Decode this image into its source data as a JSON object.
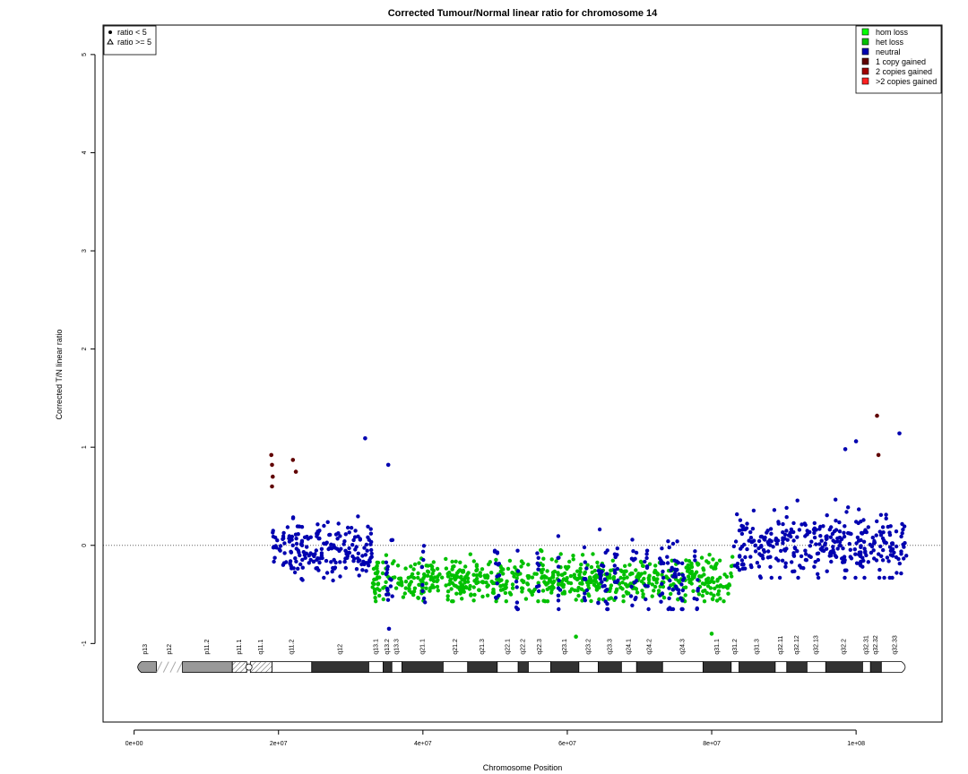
{
  "chart_data": {
    "type": "scatter",
    "title": "Corrected Tumour/Normal linear ratio for chromosome  14",
    "xlabel": "Chromosome Position",
    "ylabel": "Corrected T/N linear ratio",
    "xlim": [
      -4300000,
      111900000
    ],
    "ylim": [
      -1.8,
      5.3
    ],
    "xticks": [
      {
        "value": 0,
        "label": "0e+00"
      },
      {
        "value": 20000000,
        "label": "2e+07"
      },
      {
        "value": 40000000,
        "label": "4e+07"
      },
      {
        "value": 60000000,
        "label": "6e+07"
      },
      {
        "value": 80000000,
        "label": "8e+07"
      },
      {
        "value": 100000000,
        "label": "1e+08"
      }
    ],
    "yticks": [
      {
        "value": -1,
        "label": "-1"
      },
      {
        "value": 0,
        "label": "0"
      },
      {
        "value": 1,
        "label": "1"
      },
      {
        "value": 2,
        "label": "2"
      },
      {
        "value": 3,
        "label": "3"
      },
      {
        "value": 4,
        "label": "4"
      },
      {
        "value": 5,
        "label": "5"
      }
    ],
    "reference_line": {
      "y": 0,
      "style": "dotted"
    },
    "shape_legend": {
      "placement": "top-left",
      "entries": [
        {
          "symbol": "circle",
          "label": "ratio < 5"
        },
        {
          "symbol": "triangle",
          "label": "ratio >= 5"
        }
      ]
    },
    "legend": {
      "placement": "top-right",
      "entries": [
        {
          "label": "hom loss",
          "color": "#00ff00"
        },
        {
          "label": "het loss",
          "color": "#00c000"
        },
        {
          "label": "neutral",
          "color": "#0000b0"
        },
        {
          "label": "1 copy gained",
          "color": "#600000"
        },
        {
          "label": "2 copies gained",
          "color": "#a00000"
        },
        {
          "label": ">2 copies gained",
          "color": "#ff2020"
        }
      ]
    },
    "segments": [
      {
        "start": 19000000,
        "end": 33000000,
        "state": "neutral",
        "mean": -0.05,
        "spread": 0.28
      },
      {
        "start": 33000000,
        "end": 83000000,
        "state": "het loss",
        "mean": -0.35,
        "spread": 0.2
      },
      {
        "start": 83000000,
        "end": 107000000,
        "state": "neutral",
        "mean": 0.0,
        "spread": 0.3
      }
    ],
    "neutral_stripes_in_loss_region": [
      {
        "start": 34800000,
        "end": 35800000
      },
      {
        "start": 39800000,
        "end": 40300000
      },
      {
        "start": 49800000,
        "end": 50600000
      },
      {
        "start": 52800000,
        "end": 53300000
      },
      {
        "start": 55600000,
        "end": 56100000
      },
      {
        "start": 58600000,
        "end": 59200000
      },
      {
        "start": 62300000,
        "end": 62900000
      },
      {
        "start": 64200000,
        "end": 65700000
      },
      {
        "start": 66500000,
        "end": 67200000
      },
      {
        "start": 68800000,
        "end": 69600000
      },
      {
        "start": 70700000,
        "end": 71300000
      },
      {
        "start": 72700000,
        "end": 73400000
      },
      {
        "start": 73800000,
        "end": 76200000
      },
      {
        "start": 77600000,
        "end": 78200000
      }
    ],
    "notable_points": [
      {
        "x": 19000000,
        "y": 0.92,
        "state": "1 copy gained"
      },
      {
        "x": 19100000,
        "y": 0.82,
        "state": "1 copy gained"
      },
      {
        "x": 19200000,
        "y": 0.7,
        "state": "1 copy gained"
      },
      {
        "x": 19100000,
        "y": 0.6,
        "state": "1 copy gained"
      },
      {
        "x": 22000000,
        "y": 0.87,
        "state": "1 copy gained"
      },
      {
        "x": 22400000,
        "y": 0.75,
        "state": "1 copy gained"
      },
      {
        "x": 32000000,
        "y": 1.09,
        "state": "neutral"
      },
      {
        "x": 35200000,
        "y": 0.82,
        "state": "neutral"
      },
      {
        "x": 35300000,
        "y": -0.85,
        "state": "neutral"
      },
      {
        "x": 61200000,
        "y": -0.93,
        "state": "het loss"
      },
      {
        "x": 80000000,
        "y": -0.9,
        "state": "het loss"
      },
      {
        "x": 98500000,
        "y": 0.98,
        "state": "neutral"
      },
      {
        "x": 100000000,
        "y": 1.06,
        "state": "neutral"
      },
      {
        "x": 102900000,
        "y": 1.32,
        "state": "1 copy gained"
      },
      {
        "x": 103100000,
        "y": 0.92,
        "state": "1 copy gained"
      },
      {
        "x": 106000000,
        "y": 1.14,
        "state": "neutral"
      }
    ],
    "ideogram": {
      "bands": [
        {
          "name": "p13",
          "start": 0,
          "end": 3100000,
          "stain": "acen-grey",
          "shape": "round-left"
        },
        {
          "name": "p12",
          "start": 3100000,
          "end": 6700000,
          "stain": "stalk"
        },
        {
          "name": "p11.2",
          "start": 6700000,
          "end": 13600000,
          "stain": "gpos-light"
        },
        {
          "name": "p11.1",
          "start": 13600000,
          "end": 15600000,
          "stain": "gvar"
        },
        {
          "name": "q11.1",
          "start": 16100000,
          "end": 19100000,
          "stain": "gvar"
        },
        {
          "name": "q11.2",
          "start": 19100000,
          "end": 24600000,
          "stain": "gneg"
        },
        {
          "name": "q12",
          "start": 24600000,
          "end": 32500000,
          "stain": "gpos"
        },
        {
          "name": "q13.1",
          "start": 32500000,
          "end": 34500000,
          "stain": "gneg"
        },
        {
          "name": "q13.2",
          "start": 34500000,
          "end": 35700000,
          "stain": "gpos"
        },
        {
          "name": "q13.3",
          "start": 35700000,
          "end": 37100000,
          "stain": "gneg"
        },
        {
          "name": "q21.1",
          "start": 37100000,
          "end": 42800000,
          "stain": "gpos"
        },
        {
          "name": "q21.2",
          "start": 42800000,
          "end": 46200000,
          "stain": "gneg"
        },
        {
          "name": "q21.3",
          "start": 46200000,
          "end": 50300000,
          "stain": "gpos"
        },
        {
          "name": "q22.1",
          "start": 50300000,
          "end": 53200000,
          "stain": "gneg"
        },
        {
          "name": "q22.2",
          "start": 53200000,
          "end": 54600000,
          "stain": "gpos"
        },
        {
          "name": "q22.3",
          "start": 54600000,
          "end": 57700000,
          "stain": "gneg"
        },
        {
          "name": "q23.1",
          "start": 57700000,
          "end": 61600000,
          "stain": "gpos"
        },
        {
          "name": "q23.2",
          "start": 61600000,
          "end": 64300000,
          "stain": "gneg"
        },
        {
          "name": "q23.3",
          "start": 64300000,
          "end": 67500000,
          "stain": "gpos"
        },
        {
          "name": "q24.1",
          "start": 67500000,
          "end": 69600000,
          "stain": "gneg"
        },
        {
          "name": "q24.2",
          "start": 69600000,
          "end": 73200000,
          "stain": "gpos"
        },
        {
          "name": "q24.3",
          "start": 73200000,
          "end": 78800000,
          "stain": "gneg"
        },
        {
          "name": "q31.1",
          "start": 78800000,
          "end": 82700000,
          "stain": "gpos"
        },
        {
          "name": "q31.2",
          "start": 82700000,
          "end": 83800000,
          "stain": "gneg"
        },
        {
          "name": "q31.3",
          "start": 83800000,
          "end": 88800000,
          "stain": "gpos"
        },
        {
          "name": "q32.11",
          "start": 88800000,
          "end": 90400000,
          "stain": "gneg"
        },
        {
          "name": "q32.12",
          "start": 90400000,
          "end": 93200000,
          "stain": "gpos"
        },
        {
          "name": "q32.13",
          "start": 93200000,
          "end": 95800000,
          "stain": "gneg"
        },
        {
          "name": "q32.2",
          "start": 95800000,
          "end": 100900000,
          "stain": "gpos"
        },
        {
          "name": "q32.31",
          "start": 100900000,
          "end": 102000000,
          "stain": "gneg"
        },
        {
          "name": "q32.32",
          "start": 102000000,
          "end": 103500000,
          "stain": "gpos"
        },
        {
          "name": "q32.33",
          "start": 103500000,
          "end": 107300000,
          "stain": "gneg",
          "shape": "round-right"
        }
      ],
      "centromere": 15900000
    }
  }
}
